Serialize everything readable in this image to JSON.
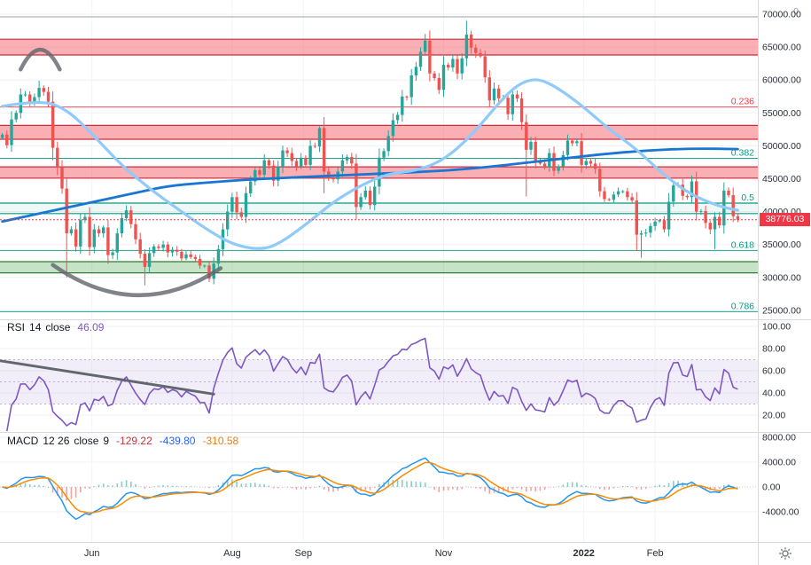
{
  "chart_data": [
    {
      "type": "candlestick",
      "name": "price",
      "last_price": 38776.03,
      "last_price_label": "38776.03",
      "price_line_color": "#f23645",
      "y_ticks": [
        70000,
        65000,
        60000,
        55000,
        50000,
        45000,
        40000,
        35000,
        30000,
        25000
      ],
      "x_axis": {
        "months": [
          {
            "label": "Jun",
            "index": 20
          },
          {
            "label": "Aug",
            "index": 50.5
          },
          {
            "label": "Sep",
            "index": 66
          },
          {
            "label": "Nov",
            "index": 96.5
          },
          {
            "label": "2022",
            "index": 127,
            "bold": true
          },
          {
            "label": "Feb",
            "index": 142.5
          }
        ]
      },
      "candle_colors": {
        "up": "#26a69a",
        "down": "#ef5350"
      },
      "candles": {
        "first_open": 51200,
        "closes": [
          51700,
          50100,
          54000,
          55000,
          57800,
          57800,
          56600,
          57400,
          58800,
          58200,
          56700,
          49700,
          46700,
          43500,
          36700,
          37300,
          34700,
          38700,
          39200,
          34600,
          37300,
          36700,
          37600,
          33400,
          33800,
          36700,
          39000,
          40200,
          38100,
          35800,
          33600,
          31600,
          33700,
          34700,
          34500,
          35000,
          33800,
          34200,
          33900,
          32900,
          33500,
          33100,
          32800,
          31800,
          31800,
          29800,
          32100,
          34300,
          37300,
          40000,
          42200,
          39900,
          39200,
          42800,
          44600,
          46300,
          45600,
          47800,
          47000,
          44700,
          46800,
          49300,
          48900,
          47700,
          46900,
          48200,
          47100,
          50000,
          49900,
          52700,
          46100,
          45200,
          44900,
          46100,
          47800,
          48300,
          47300,
          40700,
          42200,
          43200,
          41000,
          43800,
          48200,
          49200,
          51500,
          53900,
          54700,
          57500,
          57400,
          60700,
          62000,
          64300,
          66000,
          61000,
          60300,
          58500,
          62300,
          61900,
          63200,
          61000,
          63300,
          66900,
          64900,
          64100,
          63600,
          60400,
          56900,
          58700,
          57200,
          57300,
          54800,
          57800,
          57200,
          53600,
          49400,
          50600,
          47700,
          47300,
          46700,
          48900,
          46200,
          46900,
          48600,
          50800,
          50400,
          50700,
          47100,
          47700,
          47300,
          46500,
          43100,
          41900,
          41800,
          42600,
          43100,
          43100,
          42200,
          41700,
          36500,
          36700,
          36800,
          37800,
          38500,
          38700,
          37300,
          41500,
          44000,
          44100,
          42400,
          42200,
          44600,
          40000,
          40100,
          38300,
          37300,
          39200,
          37900,
          43200,
          42500,
          39300,
          38776.03
        ],
        "wick_overrides": {
          "8": {
            "high": 59900
          },
          "14": {
            "low": 30000
          },
          "31": {
            "low": 28800
          },
          "45": {
            "low": 29300
          },
          "69": {
            "high": 52950
          },
          "70": {
            "low": 42800
          },
          "92": {
            "high": 67000
          },
          "101": {
            "high": 69000
          },
          "114": {
            "low": 42300
          },
          "138": {
            "low": 34000
          },
          "139": {
            "low": 33000
          },
          "155": {
            "low": 34300
          }
        }
      },
      "moving_averages": [
        {
          "name": "ma-200-line",
          "period": 200,
          "color": "#1976d2",
          "width": 2.8,
          "points": [
            [
              0,
              38500
            ],
            [
              10,
              40000
            ],
            [
              20,
              41500
            ],
            [
              30,
              43000
            ],
            [
              36,
              43900
            ],
            [
              44,
              44400
            ],
            [
              52,
              44800
            ],
            [
              60,
              45100
            ],
            [
              70,
              45400
            ],
            [
              80,
              45700
            ],
            [
              90,
              46000
            ],
            [
              100,
              46400
            ],
            [
              110,
              47100
            ],
            [
              120,
              47900
            ],
            [
              130,
              48700
            ],
            [
              140,
              49300
            ],
            [
              150,
              49600
            ],
            [
              160,
              49500
            ]
          ]
        },
        {
          "name": "ma-50-line",
          "period": 50,
          "color": "#90caf9",
          "width": 3.2,
          "points": [
            [
              0,
              56000
            ],
            [
              8,
              57000
            ],
            [
              14,
              55600
            ],
            [
              20,
              51500
            ],
            [
              26,
              47000
            ],
            [
              32,
              43500
            ],
            [
              38,
              40500
            ],
            [
              44,
              37500
            ],
            [
              50,
              35000
            ],
            [
              56,
              34200
            ],
            [
              60,
              35000
            ],
            [
              66,
              38000
            ],
            [
              72,
              41500
            ],
            [
              78,
              44000
            ],
            [
              84,
              45800
            ],
            [
              90,
              46200
            ],
            [
              96,
              47800
            ],
            [
              102,
              51500
            ],
            [
              108,
              56500
            ],
            [
              112,
              59300
            ],
            [
              116,
              60300
            ],
            [
              120,
              59200
            ],
            [
              126,
              56200
            ],
            [
              132,
              52500
            ],
            [
              138,
              49500
            ],
            [
              144,
              45500
            ],
            [
              150,
              42500
            ],
            [
              156,
              40800
            ],
            [
              160,
              40200
            ]
          ]
        }
      ],
      "zones": [
        {
          "name": "resistance-zone-1",
          "from": 63800,
          "to": 66200,
          "fill": "rgba(242,54,69,0.40)",
          "border": "#cc2f3c"
        },
        {
          "name": "resistance-zone-2",
          "from": 51000,
          "to": 53100,
          "fill": "rgba(242,54,69,0.40)",
          "border": "#cc2f3c"
        },
        {
          "name": "resistance-zone-3",
          "from": 45100,
          "to": 46800,
          "fill": "rgba(242,54,69,0.40)",
          "border": "#cc2f3c"
        },
        {
          "name": "minor-support-zone",
          "from": 39700,
          "to": 41300,
          "fill": "rgba(8,153,129,0.07)",
          "border": "#089981"
        },
        {
          "name": "support-zone",
          "from": 30700,
          "to": 32400,
          "fill": "rgba(67,160,71,0.30)",
          "border": "#2e7d32"
        }
      ],
      "fib_levels": [
        {
          "label": "0",
          "value": 69600,
          "color": "#9598a1"
        },
        {
          "label": "0.236",
          "value": 55900,
          "color": "#f23645"
        },
        {
          "label": "0.382",
          "value": 48100,
          "color": "#089981"
        },
        {
          "label": "0.5",
          "value": 41300,
          "color": "#089981"
        },
        {
          "label": "0.618",
          "value": 34100,
          "color": "#089981"
        },
        {
          "label": "0.786",
          "value": 24800,
          "color": "#089981"
        }
      ],
      "drawings": [
        {
          "type": "arc",
          "i1": 4,
          "p1": 61600,
          "i2": 12.5,
          "p2": 61600,
          "apex": 64600,
          "color": "#60646c"
        },
        {
          "type": "arc",
          "i1": 11,
          "p1": 31900,
          "i2": 47.5,
          "p2": 31400,
          "apex": 27300,
          "color": "#60646c"
        }
      ]
    },
    {
      "type": "line",
      "name": "RSI",
      "period_label": "14",
      "source": "close",
      "value": "46.09",
      "color": "#7e57c2",
      "y_ticks": [
        100,
        80,
        60,
        40,
        20
      ],
      "band": [
        30,
        70
      ],
      "band_fill": "rgba(126,87,194,0.10)",
      "band_line_color": "#b39ddb",
      "render_period": 7,
      "trendline": {
        "i1": 0,
        "v1": 69,
        "i2": 46,
        "v2": 39,
        "color": "#62666e"
      }
    },
    {
      "type": "macd",
      "name": "MACD",
      "params": "12 26",
      "source": "close",
      "signal_param": "9",
      "hist_value": "-129.22",
      "macd_value": "-439.80",
      "signal_value": "-310.58",
      "value_colors": {
        "hist": "#cc2f3c",
        "macd": "#2962ff",
        "signal": "#f57c00"
      },
      "y_ticks": [
        8000,
        4000,
        0,
        -4000
      ],
      "line_colors": {
        "macd": "#2196f3",
        "signal": "#fb8c00"
      },
      "hist_colors": {
        "up": "#26a69a",
        "down": "#ef5350"
      },
      "render_periods": {
        "fast": 6,
        "slow": 13,
        "signal": 5
      }
    }
  ],
  "ui": {
    "settings_icon": "gear"
  }
}
